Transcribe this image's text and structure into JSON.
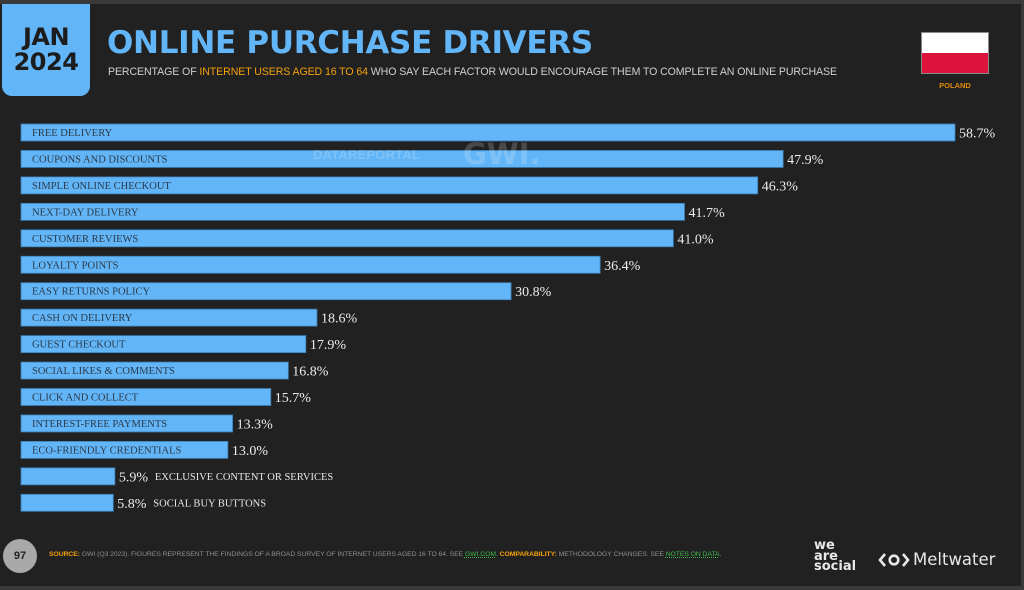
{
  "header": {
    "date_month": "JAN",
    "date_year": "2024",
    "title": "ONLINE PURCHASE DRIVERS",
    "subtitle_pre": "PERCENTAGE OF ",
    "subtitle_highlight": "INTERNET USERS AGED 16 TO 64",
    "subtitle_post": " WHO SAY EACH FACTOR WOULD ENCOURAGE THEM TO COMPLETE AN ONLINE PURCHASE",
    "country": "POLAND",
    "flag_colors": [
      "#ffffff",
      "#dc143c"
    ]
  },
  "watermark": {
    "datareportal": "DATAREPORTAL",
    "gwi": "GWI."
  },
  "chart_data": {
    "type": "bar",
    "orientation": "horizontal",
    "title": "ONLINE PURCHASE DRIVERS",
    "xlabel": "",
    "ylabel": "",
    "unit": "%",
    "xlim": [
      0,
      58.7
    ],
    "grid": false,
    "bar_color": "#62b5f7",
    "categories": [
      "FREE DELIVERY",
      "COUPONS AND DISCOUNTS",
      "SIMPLE ONLINE CHECKOUT",
      "NEXT-DAY DELIVERY",
      "CUSTOMER REVIEWS",
      "LOYALTY POINTS",
      "EASY RETURNS POLICY",
      "CASH ON DELIVERY",
      "GUEST CHECKOUT",
      "SOCIAL LIKES & COMMENTS",
      "CLICK AND COLLECT",
      "INTEREST-FREE PAYMENTS",
      "ECO-FRIENDLY CREDENTIALS",
      "EXCLUSIVE CONTENT OR SERVICES",
      "SOCIAL BUY BUTTONS"
    ],
    "values": [
      58.7,
      47.9,
      46.3,
      41.7,
      41.0,
      36.4,
      30.8,
      18.6,
      17.9,
      16.8,
      15.7,
      13.3,
      13.0,
      5.9,
      5.8
    ],
    "value_labels": [
      "58.7%",
      "47.9%",
      "46.3%",
      "41.7%",
      "41.0%",
      "36.4%",
      "30.8%",
      "18.6%",
      "17.9%",
      "16.8%",
      "15.7%",
      "13.3%",
      "13.0%",
      "5.9%",
      "5.8%"
    ]
  },
  "footer": {
    "page_number": "97",
    "source_key": "SOURCE:",
    "source_text": " GWI (Q3 2023). FIGURES REPRESENT THE FINDINGS OF A BROAD SURVEY OF INTERNET USERS AGED 16 TO 64. SEE ",
    "source_link": "GWI.COM",
    "comparability_key": " COMPARABILITY:",
    "comparability_text": " METHODOLOGY CHANGES. SEE ",
    "notes_link": "NOTES ON DATA",
    "end": ".",
    "logo_was_line1": "we",
    "logo_was_line2": "are",
    "logo_was_line3": "social",
    "logo_meltwater": "Meltwater"
  }
}
